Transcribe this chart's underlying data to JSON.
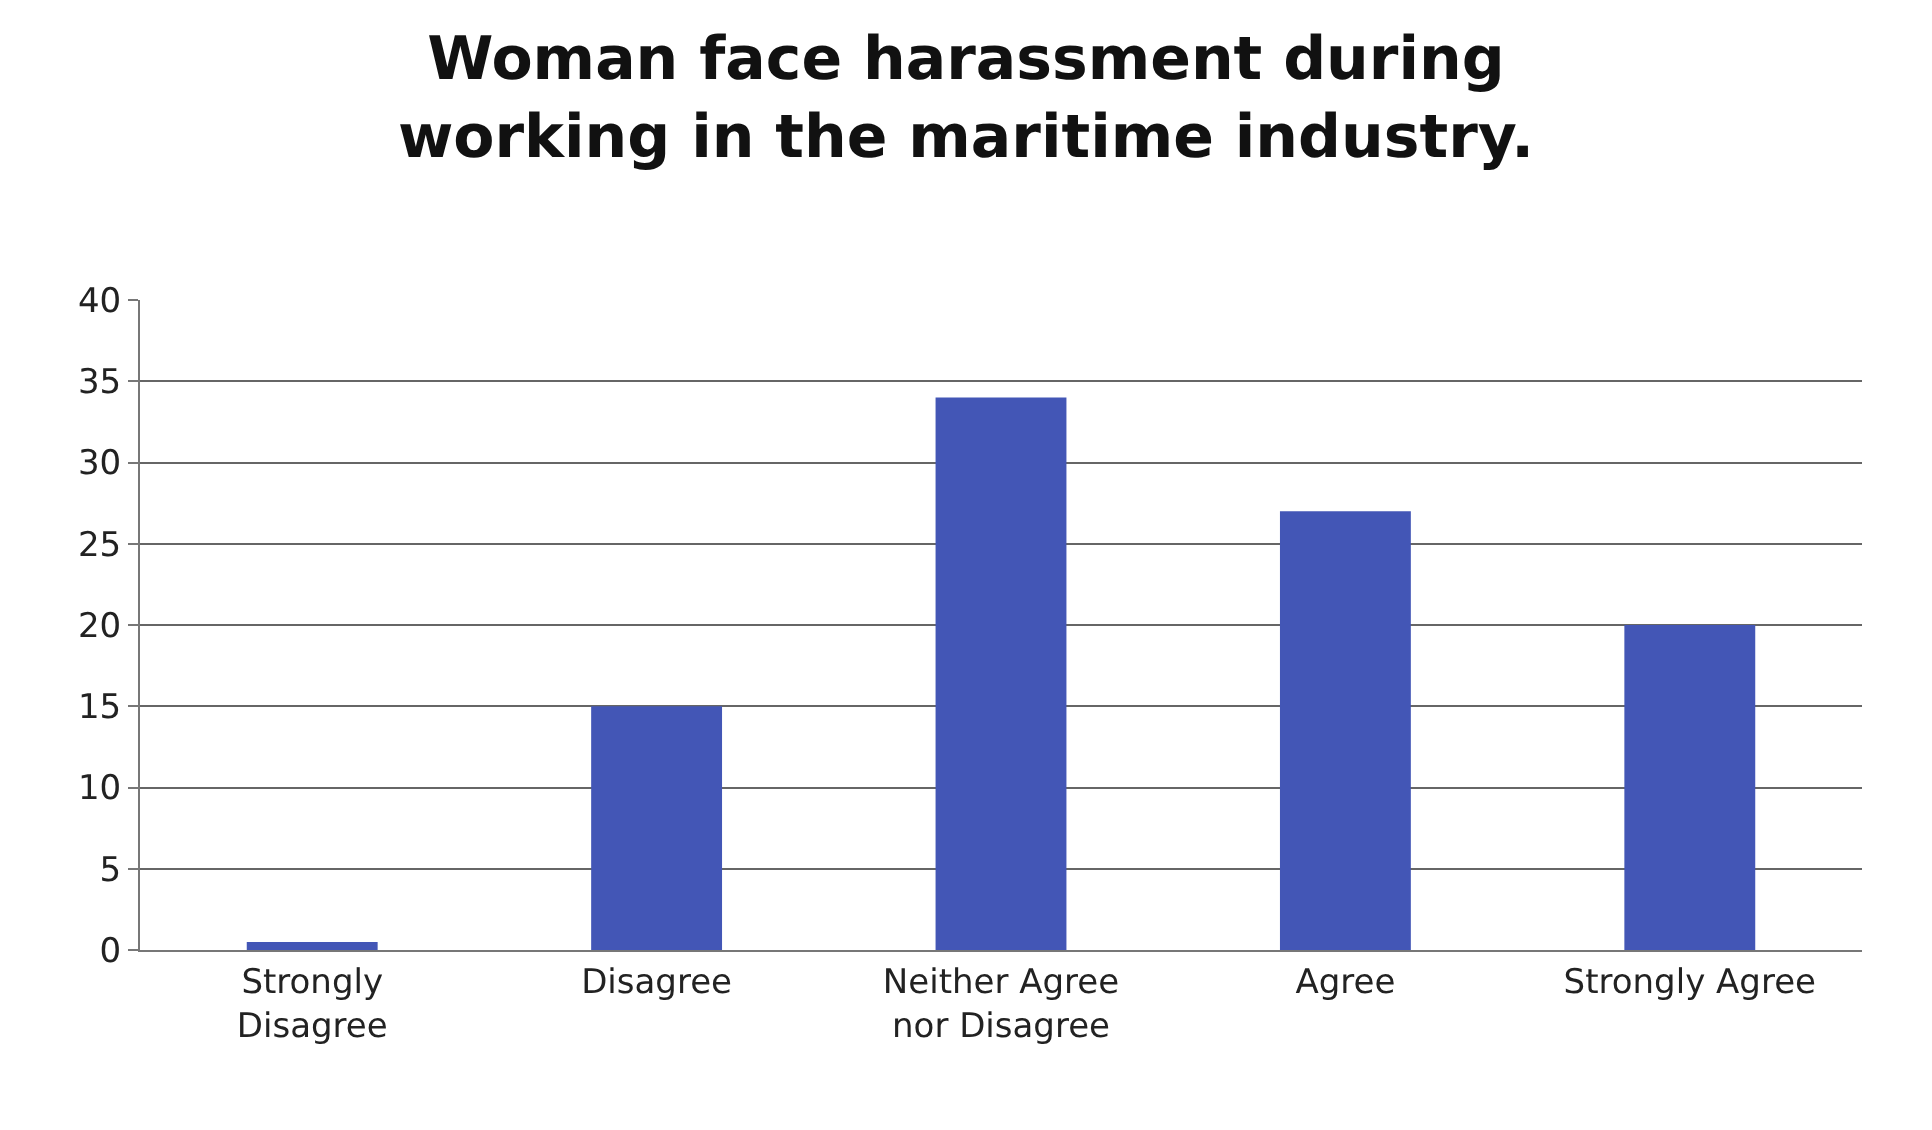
{
  "chart_data": {
    "type": "bar",
    "title": "Woman face harassment during working in the maritime industry.",
    "categories": [
      "Strongly Disagree",
      "Disagree",
      "Neither Agree nor Disagree",
      "Agree",
      "Strongly Agree"
    ],
    "values": [
      0.5,
      15,
      34,
      27,
      20
    ],
    "color": "#4356b6",
    "ylim": [
      0,
      40
    ],
    "yticks": [
      0,
      5,
      10,
      15,
      20,
      25,
      30,
      35,
      40
    ],
    "grid": "y"
  }
}
